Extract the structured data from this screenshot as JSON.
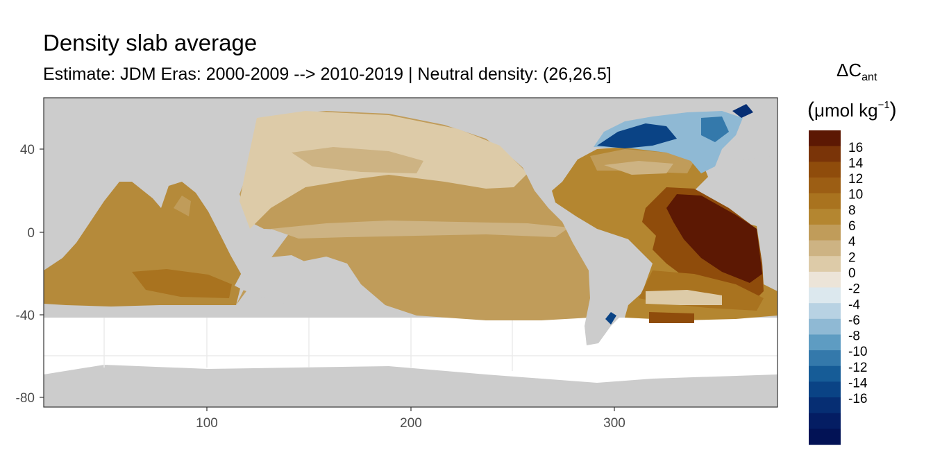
{
  "title": "Density slab average",
  "subtitle": "Estimate: JDM Eras: 2000-2009 --> 2010-2019 | Neutral density: (26,26.5]",
  "legend": {
    "title_symbol": "ΔC",
    "title_subscript": "ant",
    "unit_open": "(",
    "unit_main": "μmol kg",
    "unit_exponent": "−1",
    "unit_close": ")",
    "breaks": [
      "16",
      "14",
      "12",
      "10",
      "8",
      "6",
      "4",
      "2",
      "0",
      "-2",
      "-4",
      "-6",
      "-8",
      "-10",
      "-12",
      "-14",
      "-16"
    ],
    "colors": [
      "#5c1803",
      "#7a3408",
      "#8f4c0b",
      "#9c5e14",
      "#a9731f",
      "#b48630",
      "#c09c5a",
      "#cdb383",
      "#ddcba8",
      "#ece4d8",
      "#dce8ee",
      "#b8d2e3",
      "#8fb9d4",
      "#5e9cc2",
      "#3479ab",
      "#165c97",
      "#0a4385",
      "#062e73",
      "#041d63",
      "#021255"
    ]
  },
  "map": {
    "x_axis_ticks": [
      "100",
      "200",
      "300"
    ],
    "y_axis_ticks": [
      "40",
      "0",
      "-40",
      "-80"
    ],
    "land_color": "#cccccc",
    "no_data_color": "#ffffff"
  }
}
